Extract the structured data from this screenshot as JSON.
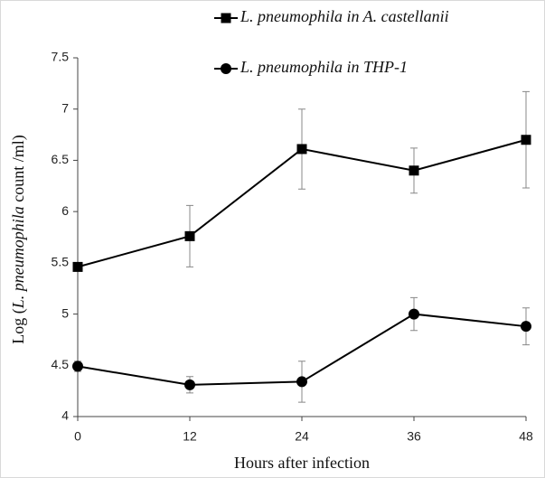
{
  "chart_data": {
    "type": "line",
    "y_label": [
      "Log (",
      "L. pneumophila",
      " count /ml)"
    ],
    "x_label": "Hours after infection",
    "x": [
      0,
      12,
      24,
      36,
      48
    ],
    "xlim": [
      0,
      48
    ],
    "xticks": [
      0,
      12,
      24,
      36,
      48
    ],
    "ylim": [
      4,
      7.5
    ],
    "yticks": [
      4,
      4.5,
      5,
      5.5,
      6,
      6.5,
      7,
      7.5
    ],
    "grid": false,
    "legend": "top",
    "series": [
      {
        "name": "L. pneumophila in A. castellanii",
        "color": "#000000",
        "marker": "square",
        "values": [
          5.46,
          5.76,
          6.61,
          6.4,
          6.7
        ],
        "errors": [
          0.03,
          0.3,
          0.39,
          0.22,
          0.47
        ]
      },
      {
        "name": "L. pneumophila in THP-1",
        "color": "#000000",
        "marker": "circle",
        "values": [
          4.49,
          4.31,
          4.34,
          5.0,
          4.88
        ],
        "errors": [
          0.05,
          0.08,
          0.2,
          0.16,
          0.18
        ]
      }
    ]
  }
}
